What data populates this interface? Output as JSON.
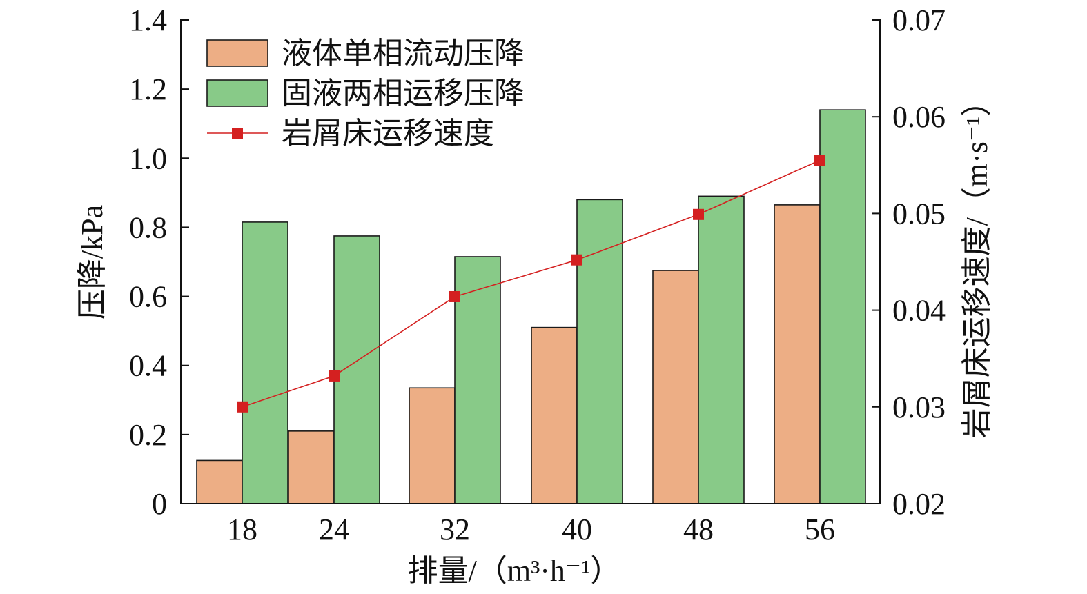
{
  "chart_data": {
    "type": "bar",
    "categories": [
      "18",
      "24",
      "32",
      "40",
      "48",
      "56"
    ],
    "series": [
      {
        "name": "液体单相流动压降",
        "axis": "left",
        "kind": "bar",
        "color": "#EDAE85",
        "values": [
          0.125,
          0.21,
          0.335,
          0.51,
          0.675,
          0.865
        ]
      },
      {
        "name": "固液两相运移压降",
        "axis": "left",
        "kind": "bar",
        "color": "#88CA88",
        "values": [
          0.815,
          0.775,
          0.715,
          0.88,
          0.89,
          1.14
        ]
      },
      {
        "name": "岩屑床运移速度",
        "axis": "right",
        "kind": "line",
        "color": "#D42020",
        "values": [
          0.03,
          0.0332,
          0.0414,
          0.0452,
          0.0499,
          0.0555
        ]
      }
    ],
    "xlabel": "排量/（m³·h⁻¹）",
    "ylabel": "压降/kPa",
    "y2label": "岩屑床运移速度/（m·s⁻¹）",
    "ylim": [
      0,
      1.4
    ],
    "y2lim": [
      0.02,
      0.07
    ],
    "yticks": [
      "0",
      "0.2",
      "0.4",
      "0.6",
      "0.8",
      "1.0",
      "1.2",
      "1.4"
    ],
    "y2ticks": [
      "0.02",
      "0.03",
      "0.04",
      "0.05",
      "0.06",
      "0.07"
    ],
    "grid": false,
    "legend_position": "top-left"
  }
}
